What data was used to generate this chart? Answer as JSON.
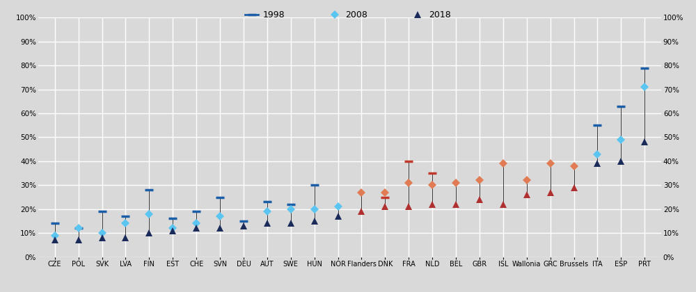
{
  "categories": [
    "CZE",
    "POL",
    "SVK",
    "LVA",
    "FIN",
    "EST",
    "CHE",
    "SVN",
    "DEU",
    "AUT",
    "SWE",
    "HUN",
    "NOR",
    "Flanders",
    "DNK",
    "FRA",
    "NLD",
    "BEL",
    "GBR",
    "ISL",
    "Wallonia",
    "GRC",
    "Brussels",
    "ITA",
    "ESP",
    "PRT"
  ],
  "val_1998": [
    14,
    12,
    19,
    17,
    28,
    16,
    19,
    25,
    15,
    23,
    22,
    30,
    null,
    null,
    25,
    40,
    35,
    null,
    null,
    null,
    null,
    null,
    null,
    55,
    63,
    79
  ],
  "val_2008": [
    9,
    12,
    10,
    14,
    18,
    12,
    14,
    17,
    null,
    19,
    20,
    20,
    21,
    27,
    27,
    31,
    30,
    31,
    32,
    39,
    32,
    39,
    38,
    43,
    49,
    71
  ],
  "val_2018": [
    7,
    7,
    8,
    8,
    10,
    11,
    12,
    12,
    13,
    14,
    14,
    15,
    17,
    19,
    21,
    21,
    22,
    22,
    24,
    22,
    26,
    27,
    29,
    39,
    40,
    48
  ],
  "color_1998_normal": "#1a5ea8",
  "color_1998_highlight": "#c0392b",
  "color_2008_normal": "#5bc5f2",
  "color_2008_highlight": "#e07b54",
  "color_2018_normal": "#1a2b5a",
  "color_2018_highlight": "#b03030",
  "highlight_countries": [
    "Flanders",
    "DNK",
    "FRA",
    "NLD",
    "BEL",
    "GBR",
    "ISL",
    "Wallonia",
    "GRC",
    "Brussels"
  ],
  "bg_color": "#d9d9d9",
  "legend_bg_color": "#d0d0d0",
  "grid_color": "#ffffff",
  "ylim": [
    0,
    100
  ],
  "yticks": [
    0,
    10,
    20,
    30,
    40,
    50,
    60,
    70,
    80,
    90,
    100
  ],
  "legend_labels": [
    "1998",
    "2008",
    "2018"
  ],
  "figsize": [
    10.0,
    4.2
  ],
  "dpi": 100
}
